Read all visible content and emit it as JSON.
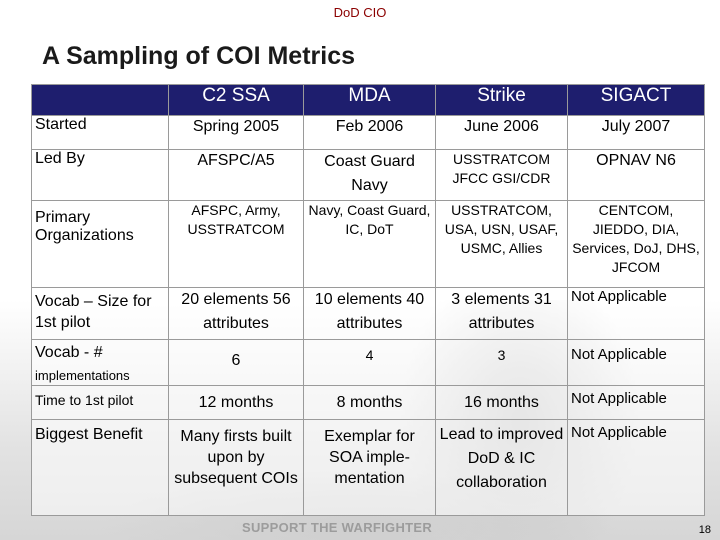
{
  "header": "DoD CIO",
  "title": "A Sampling of COI Metrics",
  "columns": [
    "C2 SSA",
    "MDA",
    "Strike",
    "SIGACT"
  ],
  "rows": [
    {
      "label": "Started",
      "sub": "",
      "cells": [
        "Spring 2005",
        "Feb 2006",
        "June 2006",
        "July 2007"
      ]
    },
    {
      "label": "Led By",
      "sub": "",
      "cells": [
        "AFSPC/A5",
        "Coast Guard Navy",
        "USSTRATCOM JFCC GSI/CDR",
        "OPNAV N6"
      ]
    },
    {
      "label": "Primary Organizations",
      "sub": "",
      "cells": [
        "AFSPC, Army, USSTRATCOM",
        "Navy, Coast Guard, IC, DoT",
        "USSTRATCOM, USA, USN, USAF, USMC, Allies",
        "CENTCOM, JIEDDO, DIA, Services, DoJ, DHS, JFCOM"
      ]
    },
    {
      "label": "Vocab – Size for 1st pilot",
      "sub": "",
      "cells": [
        "20 elements 56 attributes",
        "10 elements 40 attributes",
        "3 elements 31 attributes",
        "Not Applicable"
      ]
    },
    {
      "label": "Vocab - #",
      "sub": "implementations",
      "cells": [
        "6",
        "4",
        "3",
        "Not Applicable"
      ]
    },
    {
      "label": "Time to 1st pilot",
      "sub": "",
      "cells": [
        "12 months",
        "8 months",
        "16 months",
        "Not Applicable"
      ]
    },
    {
      "label": "Biggest Benefit",
      "sub": "",
      "cells": [
        "Many firsts built upon by subsequent COIs",
        "Exemplar for SOA imple-mentation",
        "Lead to improved DoD & IC collaboration",
        "Not Applicable"
      ]
    }
  ],
  "footer": "SUPPORT THE WARFIGHTER",
  "page_number": "18"
}
